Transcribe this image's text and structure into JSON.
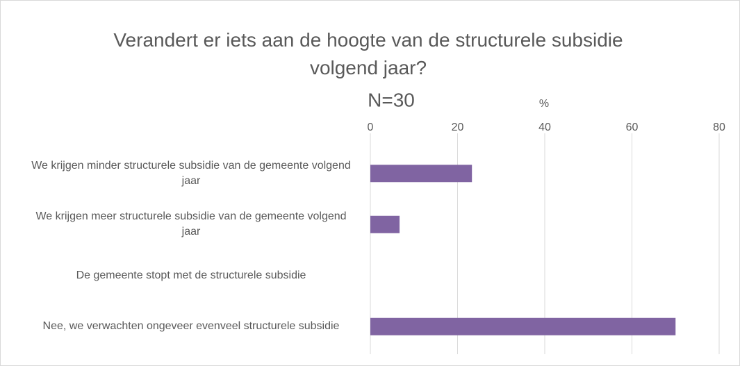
{
  "chart_data": {
    "type": "bar",
    "orientation": "horizontal",
    "title": "Verandert er iets aan de hoogte van de structurele subsidie volgend jaar?",
    "subtitle": "N=30",
    "x_label": "%",
    "categories": [
      "We krijgen minder structurele subsidie van de gemeente volgend jaar",
      "We krijgen meer structurele subsidie van de gemeente volgend jaar",
      "De gemeente stopt met de structurele subsidie",
      "Nee, we verwachten ongeveer evenveel structurele subsidie"
    ],
    "values": [
      23.3,
      6.7,
      0,
      70
    ],
    "color": "#8064a2",
    "xlim": [
      0,
      80
    ],
    "xticks": [
      0,
      20,
      40,
      60,
      80
    ],
    "grid": true
  }
}
